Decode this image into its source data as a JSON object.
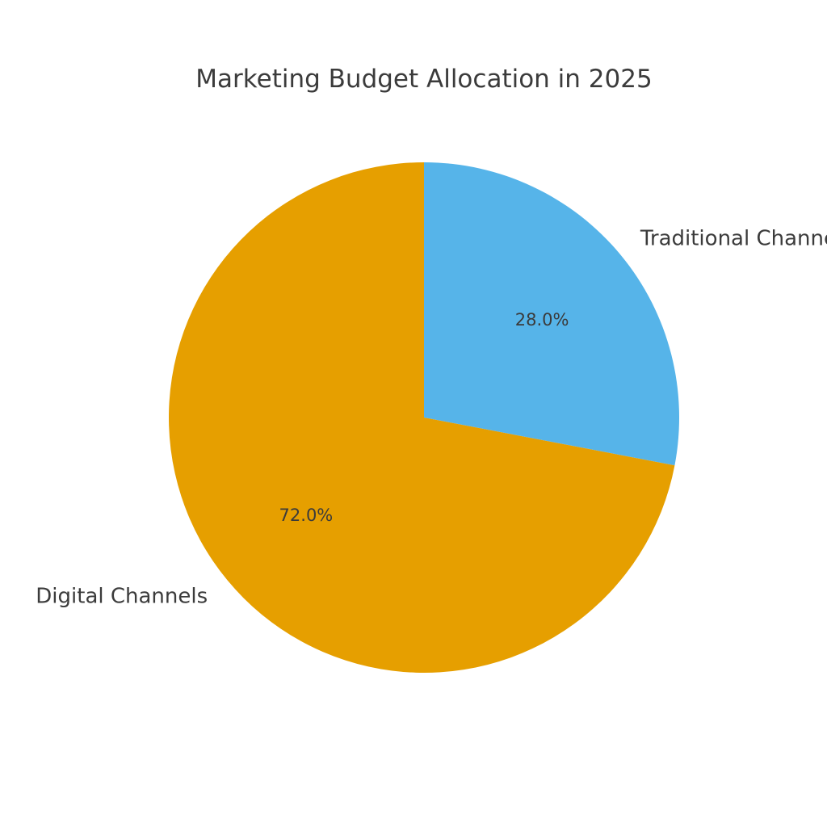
{
  "chart_data": {
    "type": "pie",
    "title": "Marketing Budget Allocation in 2025",
    "start_angle_deg": 90,
    "direction": "clockwise",
    "slices": [
      {
        "label": "Traditional Channels",
        "value": 28.0,
        "pct_label": "28.0%",
        "color": "#56b4e9"
      },
      {
        "label": "Digital Channels",
        "value": 72.0,
        "pct_label": "72.0%",
        "color": "#e69f00"
      }
    ]
  }
}
